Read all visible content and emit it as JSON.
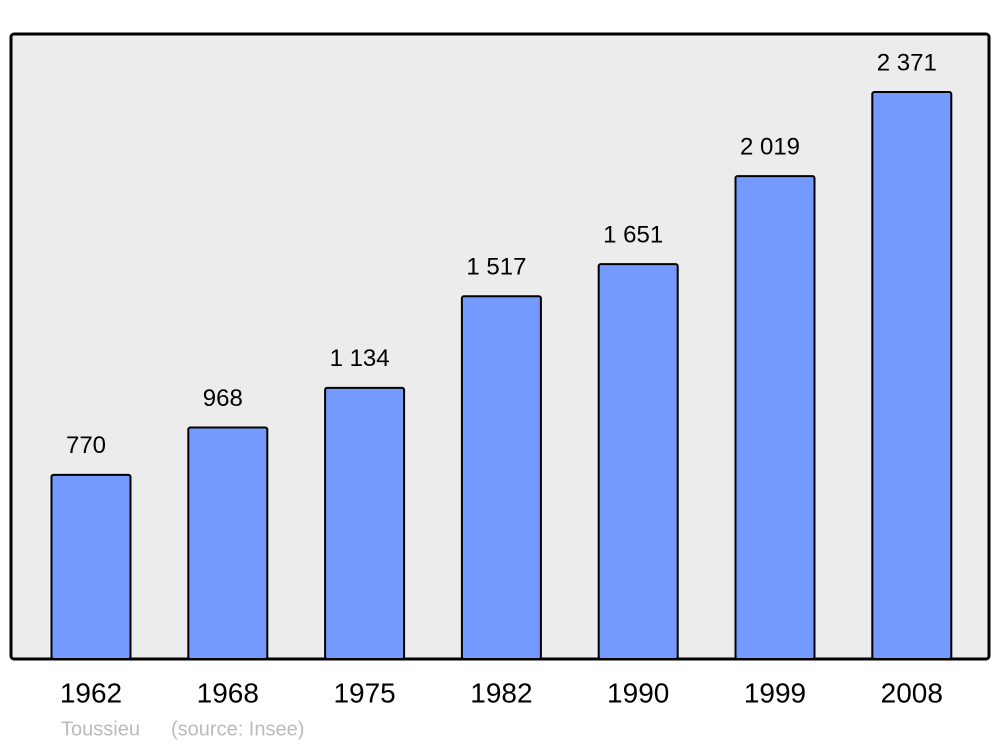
{
  "chart_data": {
    "type": "bar",
    "categories": [
      "1962",
      "1968",
      "1975",
      "1982",
      "1990",
      "1999",
      "2008"
    ],
    "values": [
      770,
      968,
      1134,
      1517,
      1651,
      2019,
      2371
    ],
    "value_labels": [
      "770",
      "968",
      "1 134",
      "1 517",
      "1 651",
      "2 019",
      "2 371"
    ],
    "color": "#7499ff",
    "footer": {
      "place": "Toussieu",
      "source": "(source: Insee)"
    }
  }
}
